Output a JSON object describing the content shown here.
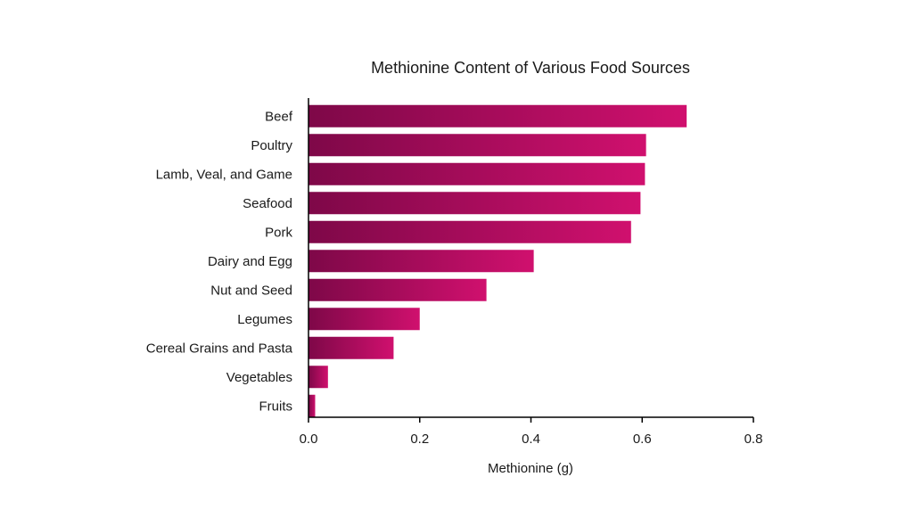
{
  "chart_data": {
    "type": "bar",
    "orientation": "horizontal",
    "title": "Methionine Content of Various Food Sources",
    "xlabel": "Methionine (g)",
    "ylabel": "",
    "xlim": [
      0,
      0.8
    ],
    "xticks": [
      "0.0",
      "0.2",
      "0.4",
      "0.6",
      "0.8"
    ],
    "xtick_values": [
      0,
      0.2,
      0.4,
      0.6,
      0.8
    ],
    "grid": false,
    "categories": [
      "Beef",
      "Poultry",
      "Lamb, Veal, and Game",
      "Seafood",
      "Pork",
      "Dairy and Egg",
      "Nut and Seed",
      "Legumes",
      "Cereal Grains and Pasta",
      "Vegetables",
      "Fruits"
    ],
    "values": [
      0.68,
      0.607,
      0.605,
      0.597,
      0.58,
      0.405,
      0.32,
      0.2,
      0.153,
      0.035,
      0.012
    ],
    "colors": {
      "bar_start": "#7e0848",
      "bar_end": "#d0106e",
      "axis": "#000000"
    }
  }
}
